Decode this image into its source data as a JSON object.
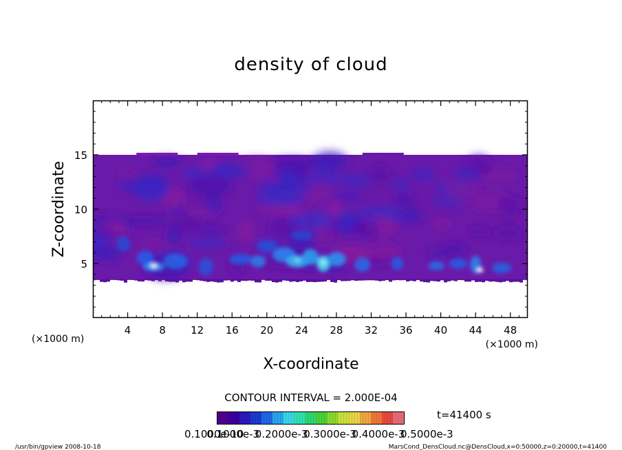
{
  "chart_data": {
    "type": "heatmap",
    "title": "density of cloud",
    "xlabel": "X-coordinate",
    "ylabel": "Z-coordinate",
    "x_unit_left": "(×1000 m)",
    "x_unit_right": "(×1000 m)",
    "xlim": [
      0,
      50
    ],
    "ylim": [
      0,
      20
    ],
    "x_ticks": [
      4,
      8,
      12,
      16,
      20,
      24,
      28,
      32,
      36,
      40,
      44,
      48
    ],
    "y_ticks": [
      5,
      10,
      15
    ],
    "cloud_layer_z": [
      3.5,
      15
    ],
    "contour_interval": "CONTOUR INTERVAL = 2.000E-04",
    "time_label": "t=41400 s",
    "colorbar_labels": [
      "0.1000e-10",
      "0.1000e-3",
      "0.2000e-3",
      "0.3000e-3",
      "0.4000e-3",
      "0.5000e-3"
    ],
    "colorbar_colors": [
      "#52008f",
      "#3a00a0",
      "#2a1ab8",
      "#1a3ad0",
      "#1f66e6",
      "#2aa2ee",
      "#38d6e8",
      "#2fe0b0",
      "#2cd672",
      "#46d13a",
      "#8bd82e",
      "#c9e03a",
      "#e8d444",
      "#eea640",
      "#ee7436",
      "#e8483a",
      "#e86a7a"
    ],
    "background_density_color": "#6a1aa8"
  },
  "footer": {
    "left": "/usr/bin/gpview   2008-10-18",
    "right": "MarsCond_DensCloud.nc@DensCloud,x=0:50000,z=0:20000,t=41400"
  }
}
